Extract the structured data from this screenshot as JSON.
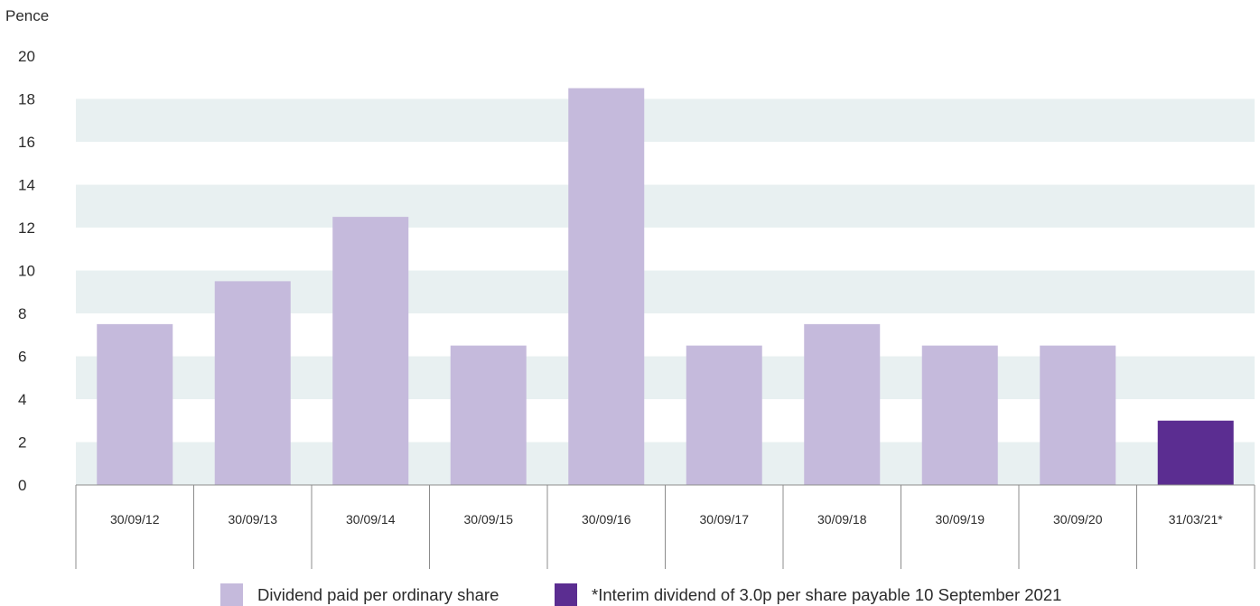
{
  "chart_data": {
    "type": "bar",
    "title": "",
    "xlabel": "",
    "ylabel": "Pence",
    "ylim": [
      0,
      20
    ],
    "yticks": [
      0,
      2,
      4,
      6,
      8,
      10,
      12,
      14,
      16,
      18,
      20
    ],
    "categories": [
      "30/09/12",
      "30/09/13",
      "30/09/14",
      "30/09/15",
      "30/09/16",
      "30/09/17",
      "30/09/18",
      "30/09/19",
      "30/09/20",
      "31/03/21*"
    ],
    "values": [
      7.5,
      9.5,
      12.5,
      6.5,
      18.5,
      6.5,
      7.5,
      6.5,
      6.5,
      3.0
    ],
    "series": [
      {
        "name": "Dividend paid per ordinary share",
        "color": "#c5badc"
      },
      {
        "name": "*Interim dividend of 3.0p per share payable 10 September 2021",
        "color": "#5b2d91"
      }
    ],
    "bar_series_index": [
      0,
      0,
      0,
      0,
      0,
      0,
      0,
      0,
      0,
      1
    ],
    "grid_band_color": "#e8f0f1",
    "legend_position": "bottom"
  }
}
